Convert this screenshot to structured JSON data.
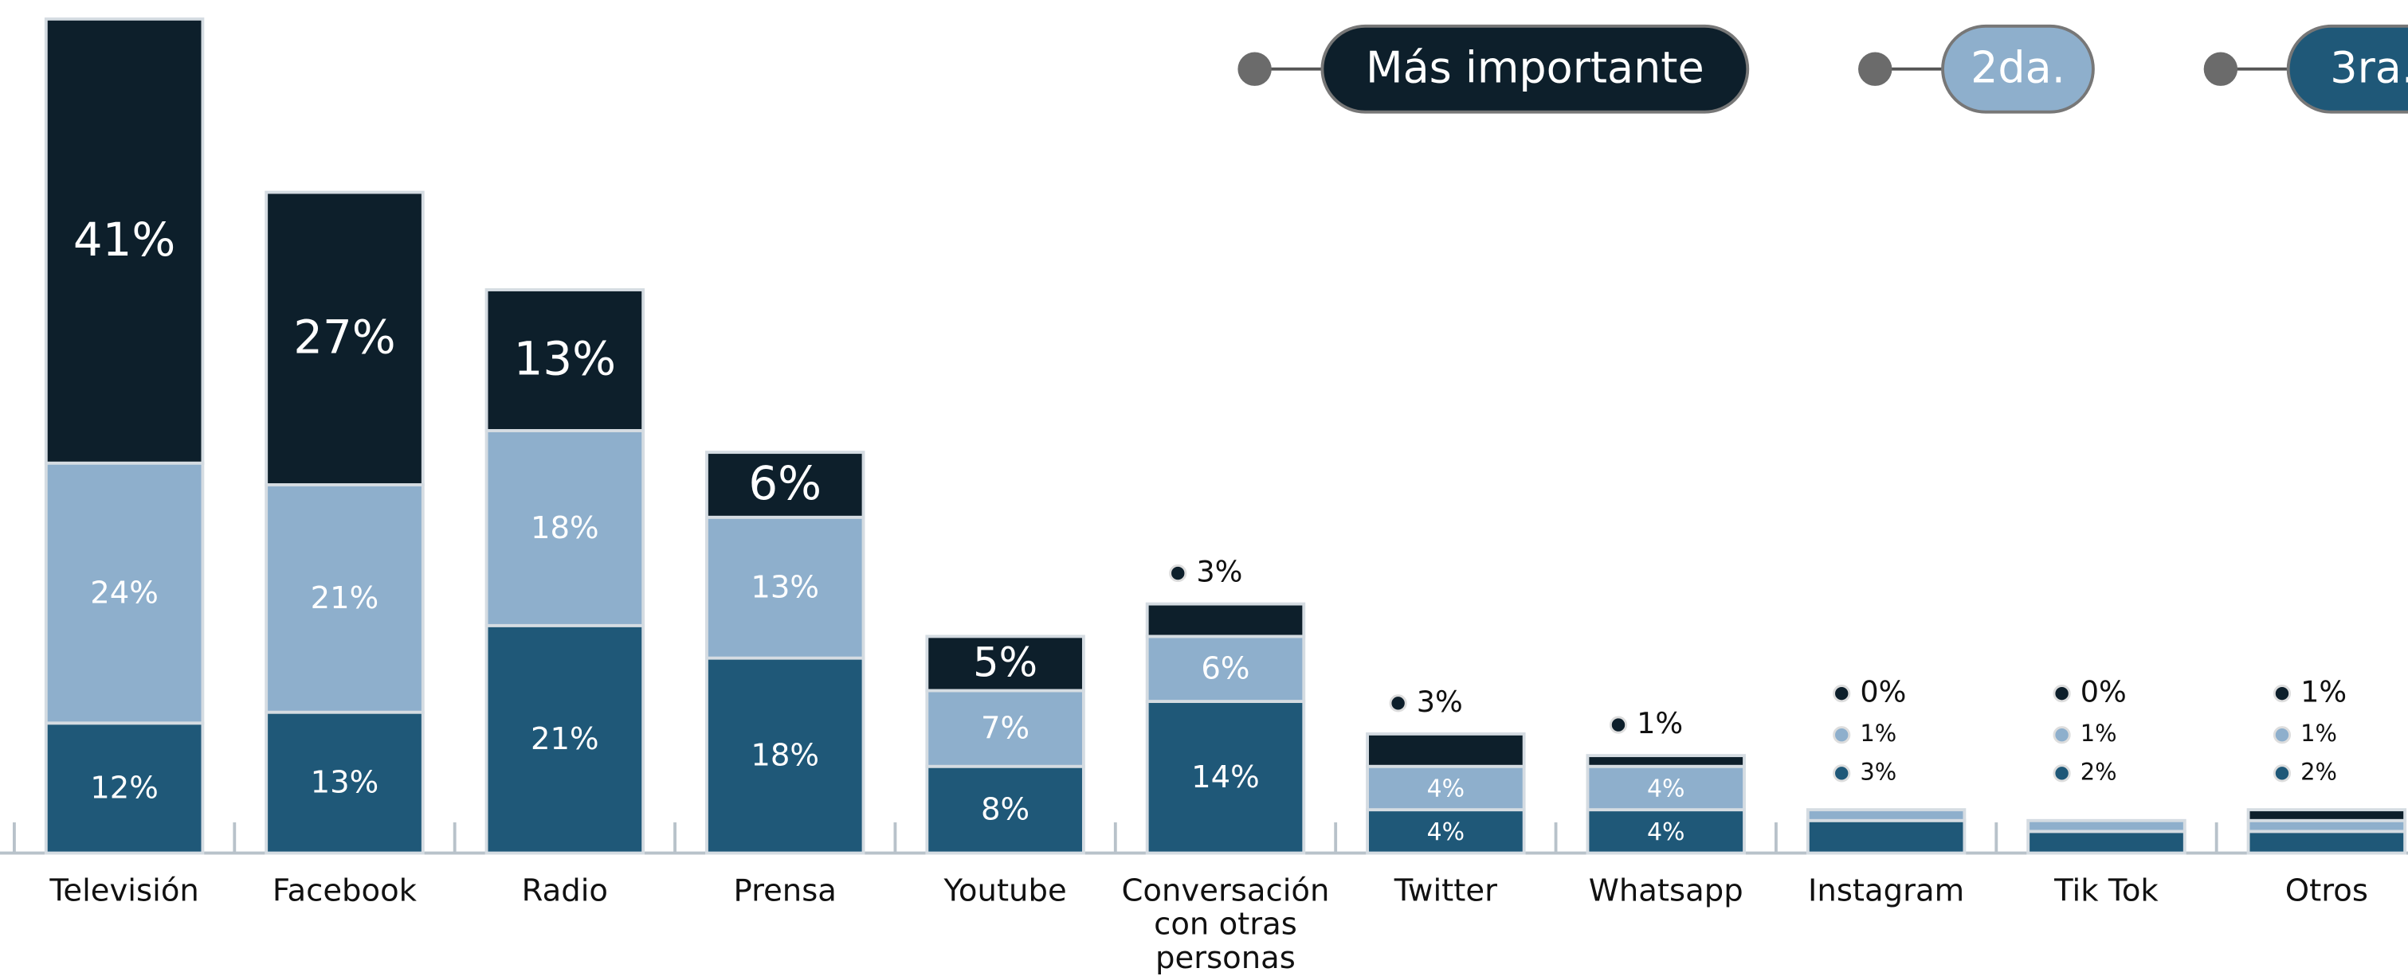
{
  "chart_data": {
    "type": "stacked_bar",
    "categories": [
      "Televisión",
      "Facebook",
      "Radio",
      "Prensa",
      "Youtube",
      "Conversación con otras personas",
      "Twitter",
      "Whatsapp",
      "Instagram",
      "Tik Tok",
      "Otros"
    ],
    "series": [
      {
        "name": "Más importante",
        "color": "#0d1f2b",
        "values": [
          41,
          27,
          13,
          6,
          5,
          3,
          3,
          1,
          0,
          0,
          1
        ],
        "value_labels": [
          "41%",
          "27%",
          "13%",
          "6%",
          "5%",
          "3%",
          "3%",
          "1%",
          "0%",
          "0%",
          "1%"
        ]
      },
      {
        "name": "2da.",
        "color": "#8eafcc",
        "values": [
          24,
          21,
          18,
          13,
          7,
          6,
          4,
          4,
          1,
          1,
          1
        ],
        "value_labels": [
          "24%",
          "21%",
          "18%",
          "13%",
          "7%",
          "6%",
          "4%",
          "4%",
          "1%",
          "1%",
          "1%"
        ]
      },
      {
        "name": "3ra.",
        "color": "#1f5878",
        "values": [
          12,
          13,
          21,
          18,
          8,
          14,
          4,
          4,
          3,
          2,
          2
        ],
        "value_labels": [
          "12%",
          "13%",
          "21%",
          "18%",
          "8%",
          "14%",
          "4%",
          "4%",
          "3%",
          "2%",
          "2%"
        ]
      }
    ],
    "legend": "top-right"
  }
}
